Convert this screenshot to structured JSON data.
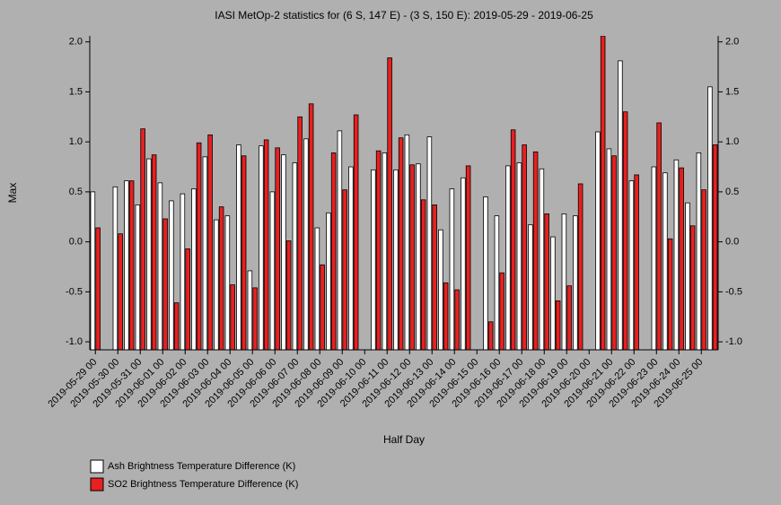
{
  "chart_data": {
    "type": "bar",
    "title": "IASI MetOp-2 statistics for (6 S, 147 E) - (3 S, 150 E): 2019-05-29 - 2019-06-25",
    "x_label": "Half Day",
    "y_label": "Max",
    "categories": [
      "2019-05-29 00",
      null,
      "2019-05-30 00",
      null,
      "2019-05-31 00",
      null,
      "2019-06-01 00",
      null,
      "2019-06-02 00",
      null,
      "2019-06-03 00",
      null,
      "2019-06-04 00",
      null,
      "2019-06-05 00",
      null,
      "2019-06-06 00",
      null,
      "2019-06-07 00",
      null,
      "2019-06-08 00",
      null,
      "2019-06-09 00",
      null,
      "2019-06-10 00",
      null,
      "2019-06-11 00",
      null,
      "2019-06-12 00",
      null,
      "2019-06-13 00",
      null,
      "2019-06-14 00",
      null,
      "2019-06-15 00",
      null,
      "2019-06-16 00",
      null,
      "2019-06-17 00",
      null,
      "2019-06-18 00",
      null,
      "2019-06-19 00",
      null,
      "2019-06-20 00",
      null,
      "2019-06-21 00",
      null,
      "2019-06-22 00",
      null,
      "2019-06-23 00",
      null,
      "2019-06-24 00",
      null,
      "2019-06-25 00",
      null
    ],
    "series": [
      {
        "name": "Ash Brightness Temperature Difference (K)",
        "color": "#ffffff",
        "values": [
          0.5,
          null,
          0.55,
          0.61,
          0.37,
          0.83,
          0.59,
          0.41,
          0.48,
          0.53,
          0.85,
          0.22,
          0.26,
          0.97,
          -0.29,
          0.96,
          0.5,
          0.87,
          0.79,
          1.03,
          0.14,
          0.29,
          1.11,
          0.75,
          null,
          0.72,
          0.89,
          0.72,
          1.07,
          0.78,
          1.05,
          0.12,
          0.53,
          0.64,
          null,
          0.45,
          0.26,
          0.76,
          0.79,
          0.17,
          0.73,
          0.05,
          0.28,
          0.26,
          null,
          1.1,
          0.93,
          1.81,
          0.61,
          null,
          0.75,
          0.69,
          0.82,
          0.39,
          0.89,
          1.55
        ]
      },
      {
        "name": "SO2 Brightness Temperature Difference (K)",
        "color": "#e82020",
        "values": [
          0.14,
          null,
          0.08,
          0.61,
          1.13,
          0.87,
          0.23,
          -0.61,
          -0.07,
          0.99,
          1.07,
          0.35,
          -0.43,
          0.86,
          -0.46,
          1.02,
          0.94,
          0.01,
          1.25,
          1.38,
          -0.23,
          0.89,
          0.52,
          1.27,
          null,
          0.91,
          1.84,
          1.04,
          0.77,
          0.42,
          0.37,
          -0.41,
          -0.48,
          0.76,
          null,
          -0.8,
          -0.31,
          1.12,
          0.97,
          0.9,
          0.28,
          -0.59,
          -0.44,
          0.58,
          null,
          2.06,
          0.86,
          1.3,
          0.67,
          null,
          1.19,
          0.03,
          0.74,
          0.16,
          0.52,
          0.97
        ]
      }
    ],
    "ylim": [
      -1.08,
      2.06
    ],
    "yticks": [
      {
        "value": -1,
        "label": "-1.0"
      },
      {
        "value": -0.5,
        "label": "-0.5"
      },
      {
        "value": 0,
        "label": "0.0"
      },
      {
        "value": 0.5,
        "label": "0.5"
      },
      {
        "value": 1,
        "label": "1.0"
      },
      {
        "value": 1.5,
        "label": "1.5"
      },
      {
        "value": 2,
        "label": "2.0"
      }
    ],
    "right_axis": true
  }
}
